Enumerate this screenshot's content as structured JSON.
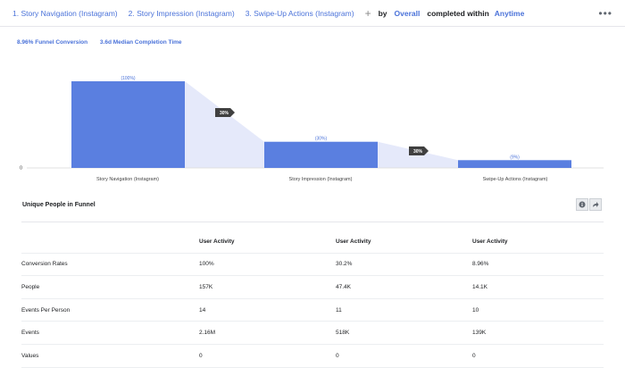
{
  "header": {
    "steps": [
      "1. Story Navigation (Instagram)",
      "2. Story Impression (Instagram)",
      "3. Swipe-Up Actions (Instagram)"
    ],
    "plus": "+",
    "by_label": "by",
    "breakdown_value": "Overall",
    "completed_label": "completed within",
    "time_value": "Anytime",
    "more": "•••"
  },
  "summary": {
    "conversion": "8.96% Funnel Conversion",
    "median": "3.6d Median Completion Time"
  },
  "funnel": {
    "zero_label": "0",
    "bars": [
      {
        "name": "Story Navigation (Instagram)",
        "pct_label": "(100%)",
        "value": 1.0
      },
      {
        "name": "Story Impression (Instagram)",
        "pct_label": "(30%)",
        "value": 0.302
      },
      {
        "name": "Swipe-Up Actions (Instagram)",
        "pct_label": "(9%)",
        "value": 0.0896
      }
    ],
    "step_badges": [
      "30%",
      "30%"
    ],
    "colors": {
      "bar": "#5a7fe0",
      "connector": "#e5e9fa",
      "badge": "#404040"
    }
  },
  "table": {
    "title": "Unique People in Funnel",
    "headers": [
      "",
      "User Activity",
      "User Activity",
      "User Activity"
    ],
    "rows": [
      [
        "Conversion Rates",
        "100%",
        "30.2%",
        "8.96%"
      ],
      [
        "People",
        "157K",
        "47.4K",
        "14.1K"
      ],
      [
        "Events Per Person",
        "14",
        "11",
        "10"
      ],
      [
        "Events",
        "2.16M",
        "518K",
        "139K"
      ],
      [
        "Values",
        "0",
        "0",
        "0"
      ]
    ]
  }
}
